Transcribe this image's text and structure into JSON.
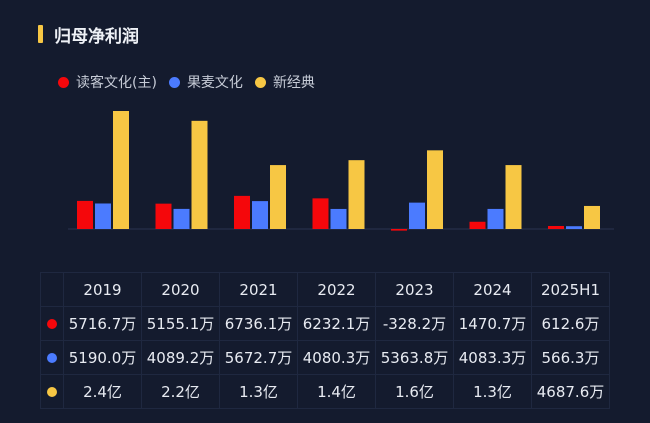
{
  "title": "归母净利润",
  "colors": {
    "red": "#f5070b",
    "blue": "#4b7bff",
    "yellow": "#f7c744",
    "background": "#141b2e"
  },
  "chart_data": {
    "type": "bar",
    "title": "归母净利润",
    "unit": "万",
    "categories": [
      "2019",
      "2020",
      "2021",
      "2022",
      "2023",
      "2024",
      "2025H1"
    ],
    "legend_position": "top-left",
    "grid": false,
    "series": [
      {
        "name": "读客文化(主)",
        "color": "#f5070b",
        "values": [
          5716.7,
          5155.1,
          6736.1,
          6232.1,
          -328.2,
          1470.7,
          612.6
        ],
        "labels": [
          "5716.7万",
          "5155.1万",
          "6736.1万",
          "6232.1万",
          "-328.2万",
          "1470.7万",
          "612.6万"
        ]
      },
      {
        "name": "果麦文化",
        "color": "#4b7bff",
        "values": [
          5190.0,
          4089.2,
          5672.7,
          4080.3,
          5363.8,
          4083.3,
          566.3
        ],
        "labels": [
          "5190.0万",
          "4089.2万",
          "5672.7万",
          "4080.3万",
          "5363.8万",
          "4083.3万",
          "566.3万"
        ]
      },
      {
        "name": "新经典",
        "color": "#f7c744",
        "values": [
          24000,
          22000,
          13000,
          14000,
          16000,
          13000,
          4687.6
        ],
        "labels": [
          "2.4亿",
          "2.2亿",
          "1.3亿",
          "1.4亿",
          "1.6亿",
          "1.3亿",
          "4687.6万"
        ]
      }
    ]
  }
}
